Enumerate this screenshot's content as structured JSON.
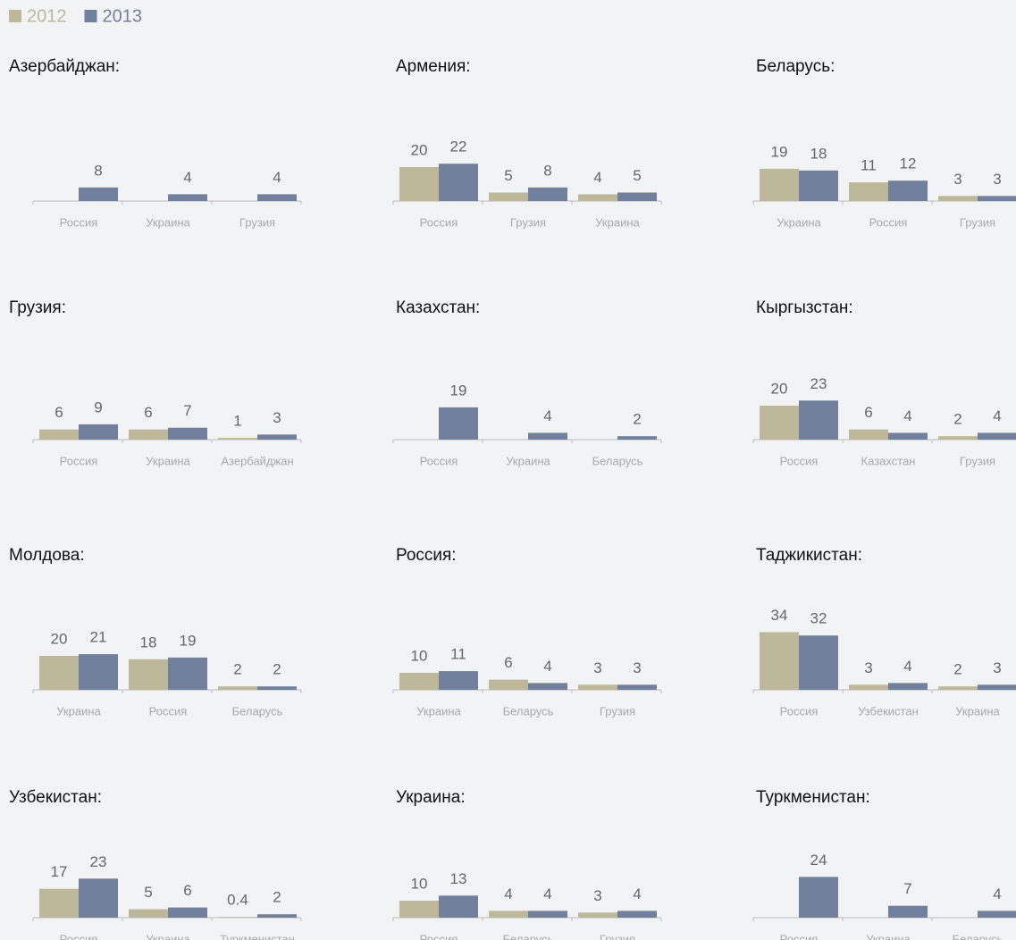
{
  "legend": {
    "series": [
      {
        "name": "2012",
        "color": "#bdb89a"
      },
      {
        "name": "2013",
        "color": "#71819d"
      }
    ]
  },
  "chart_data": [
    {
      "type": "bar",
      "title": "Азербайджан:",
      "categories": [
        "Россия",
        "Украина",
        "Грузия"
      ],
      "series": [
        {
          "values": [
            null,
            null,
            null
          ]
        },
        {
          "values": [
            8,
            4,
            4
          ]
        }
      ]
    },
    {
      "type": "bar",
      "title": "Армения:",
      "categories": [
        "Россия",
        "Грузия",
        "Украина"
      ],
      "series": [
        {
          "values": [
            20,
            5,
            4
          ]
        },
        {
          "values": [
            22,
            8,
            5
          ]
        }
      ]
    },
    {
      "type": "bar",
      "title": "Беларусь:",
      "categories": [
        "Украина",
        "Россия",
        "Грузия"
      ],
      "series": [
        {
          "values": [
            19,
            11,
            3
          ]
        },
        {
          "values": [
            18,
            12,
            3
          ]
        }
      ]
    },
    {
      "type": "bar",
      "title": "Грузия:",
      "categories": [
        "Россия",
        "Украина",
        "Азербайджан"
      ],
      "series": [
        {
          "values": [
            6,
            6,
            1
          ]
        },
        {
          "values": [
            9,
            7,
            3
          ]
        }
      ]
    },
    {
      "type": "bar",
      "title": "Казахстан:",
      "categories": [
        "Россия",
        "Украина",
        "Беларусь"
      ],
      "series": [
        {
          "values": [
            null,
            null,
            null
          ]
        },
        {
          "values": [
            19,
            4,
            2
          ]
        }
      ]
    },
    {
      "type": "bar",
      "title": "Кыргызстан:",
      "categories": [
        "Россия",
        "Казахстан",
        "Грузия"
      ],
      "series": [
        {
          "values": [
            20,
            6,
            2
          ]
        },
        {
          "values": [
            23,
            4,
            4
          ]
        }
      ]
    },
    {
      "type": "bar",
      "title": "Молдова:",
      "categories": [
        "Украина",
        "Россия",
        "Беларусь"
      ],
      "series": [
        {
          "values": [
            20,
            18,
            2
          ]
        },
        {
          "values": [
            21,
            19,
            2
          ]
        }
      ]
    },
    {
      "type": "bar",
      "title": "Россия:",
      "categories": [
        "Украина",
        "Беларусь",
        "Грузия"
      ],
      "series": [
        {
          "values": [
            10,
            6,
            3
          ]
        },
        {
          "values": [
            11,
            4,
            3
          ]
        }
      ]
    },
    {
      "type": "bar",
      "title": "Таджикистан:",
      "categories": [
        "Россия",
        "Узбекистан",
        "Украина"
      ],
      "series": [
        {
          "values": [
            34,
            3,
            2
          ]
        },
        {
          "values": [
            32,
            4,
            3
          ]
        }
      ]
    },
    {
      "type": "bar",
      "title": "Узбекистан:",
      "categories": [
        "Россия",
        "Украина",
        "Туркменистан"
      ],
      "series": [
        {
          "values": [
            17,
            5,
            0.4
          ]
        },
        {
          "values": [
            23,
            6,
            2
          ]
        }
      ]
    },
    {
      "type": "bar",
      "title": "Украина:",
      "categories": [
        "Россия",
        "Беларусь",
        "Грузия"
      ],
      "series": [
        {
          "values": [
            10,
            4,
            3
          ]
        },
        {
          "values": [
            13,
            4,
            4
          ]
        }
      ]
    },
    {
      "type": "bar",
      "title": "Туркменистан:",
      "categories": [
        "Россия",
        "Украина",
        "Беларусь"
      ],
      "series": [
        {
          "values": [
            null,
            null,
            null
          ]
        },
        {
          "values": [
            24,
            7,
            4
          ]
        }
      ]
    }
  ]
}
